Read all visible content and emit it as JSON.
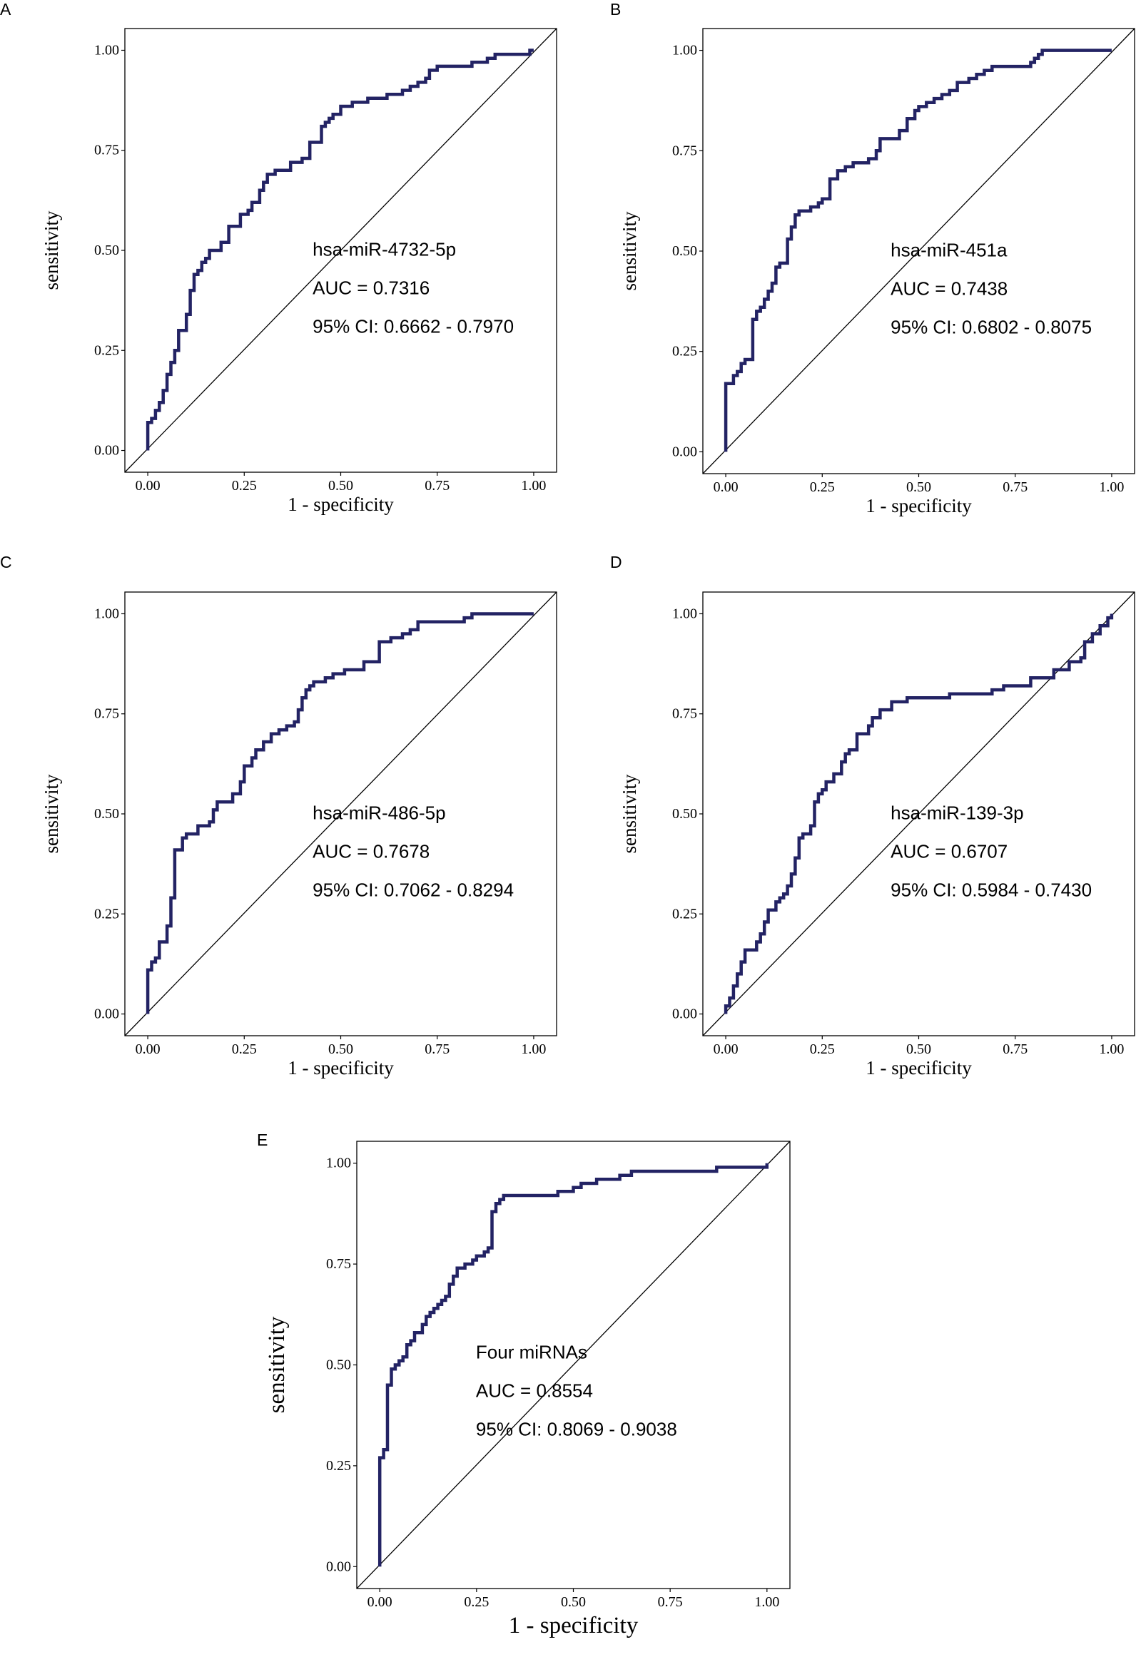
{
  "figure": {
    "colors": {
      "roc_line": "#232364",
      "diagonal": "#000000",
      "frame": "#000000",
      "background": "#ffffff"
    }
  },
  "chart_data": [
    {
      "id": "A",
      "panel_label": "A",
      "type": "line",
      "title": "",
      "xlabel": "1 - specificity",
      "ylabel": "sensitivity",
      "xlim": [
        0,
        1
      ],
      "ylim": [
        0,
        1
      ],
      "xticks": [
        "0.00",
        "0.25",
        "0.50",
        "0.75",
        "1.00"
      ],
      "yticks": [
        "0.00",
        "0.25",
        "0.50",
        "0.75",
        "1.00"
      ],
      "annotation": {
        "name": "hsa-miR-4732-5p",
        "auc": "AUC = 0.7316",
        "ci": "95% CI: 0.6662 - 0.7970"
      },
      "series": [
        {
          "name": "ROC",
          "x": [
            0.0,
            0.0,
            0.01,
            0.02,
            0.03,
            0.04,
            0.05,
            0.06,
            0.07,
            0.08,
            0.09,
            0.1,
            0.11,
            0.12,
            0.13,
            0.14,
            0.15,
            0.16,
            0.17,
            0.19,
            0.21,
            0.22,
            0.24,
            0.26,
            0.27,
            0.29,
            0.3,
            0.31,
            0.33,
            0.35,
            0.37,
            0.4,
            0.42,
            0.45,
            0.46,
            0.47,
            0.48,
            0.5,
            0.53,
            0.57,
            0.59,
            0.62,
            0.66,
            0.68,
            0.7,
            0.72,
            0.73,
            0.75,
            0.77,
            0.8,
            0.84,
            0.87,
            0.88,
            0.9,
            0.94,
            0.98,
            0.99,
            1.0
          ],
          "y": [
            0.0,
            0.07,
            0.08,
            0.1,
            0.12,
            0.15,
            0.19,
            0.22,
            0.25,
            0.3,
            0.3,
            0.34,
            0.4,
            0.44,
            0.45,
            0.47,
            0.48,
            0.5,
            0.5,
            0.52,
            0.56,
            0.56,
            0.59,
            0.6,
            0.62,
            0.65,
            0.67,
            0.69,
            0.7,
            0.7,
            0.72,
            0.73,
            0.77,
            0.81,
            0.82,
            0.83,
            0.84,
            0.86,
            0.87,
            0.88,
            0.88,
            0.89,
            0.9,
            0.91,
            0.92,
            0.93,
            0.95,
            0.96,
            0.96,
            0.96,
            0.97,
            0.97,
            0.98,
            0.99,
            0.99,
            0.99,
            1.0,
            1.0
          ]
        }
      ]
    },
    {
      "id": "B",
      "panel_label": "B",
      "type": "line",
      "title": "",
      "xlabel": "1 - specificity",
      "ylabel": "sensitivity",
      "xlim": [
        0,
        1
      ],
      "ylim": [
        0,
        1
      ],
      "xticks": [
        "0.00",
        "0.25",
        "0.50",
        "0.75",
        "1.00"
      ],
      "yticks": [
        "0.00",
        "0.25",
        "0.50",
        "0.75",
        "1.00"
      ],
      "annotation": {
        "name": "hsa-miR-451a",
        "auc": "AUC = 0.7438",
        "ci": "95% CI: 0.6802 - 0.8075"
      },
      "series": [
        {
          "name": "ROC",
          "x": [
            0.0,
            0.0,
            0.02,
            0.03,
            0.04,
            0.05,
            0.07,
            0.07,
            0.08,
            0.09,
            0.1,
            0.11,
            0.12,
            0.13,
            0.14,
            0.15,
            0.16,
            0.17,
            0.18,
            0.19,
            0.2,
            0.22,
            0.24,
            0.25,
            0.26,
            0.27,
            0.29,
            0.31,
            0.33,
            0.35,
            0.37,
            0.39,
            0.4,
            0.43,
            0.45,
            0.47,
            0.49,
            0.5,
            0.52,
            0.54,
            0.56,
            0.58,
            0.6,
            0.63,
            0.65,
            0.66,
            0.67,
            0.69,
            0.72,
            0.76,
            0.79,
            0.8,
            0.81,
            0.82,
            0.84,
            0.88,
            0.9,
            0.93,
            0.97,
            1.0
          ],
          "y": [
            0.0,
            0.17,
            0.19,
            0.2,
            0.22,
            0.23,
            0.29,
            0.33,
            0.35,
            0.36,
            0.38,
            0.4,
            0.42,
            0.46,
            0.47,
            0.47,
            0.53,
            0.56,
            0.59,
            0.6,
            0.6,
            0.61,
            0.62,
            0.63,
            0.63,
            0.68,
            0.7,
            0.71,
            0.72,
            0.72,
            0.73,
            0.75,
            0.78,
            0.78,
            0.8,
            0.83,
            0.85,
            0.86,
            0.87,
            0.88,
            0.89,
            0.9,
            0.92,
            0.93,
            0.94,
            0.94,
            0.95,
            0.96,
            0.96,
            0.96,
            0.97,
            0.98,
            0.99,
            1.0,
            1.0,
            1.0,
            1.0,
            1.0,
            1.0,
            1.0
          ]
        }
      ]
    },
    {
      "id": "C",
      "panel_label": "C",
      "type": "line",
      "title": "",
      "xlabel": "1 - specificity",
      "ylabel": "sensitivity",
      "xlim": [
        0,
        1
      ],
      "ylim": [
        0,
        1
      ],
      "xticks": [
        "0.00",
        "0.25",
        "0.50",
        "0.75",
        "1.00"
      ],
      "yticks": [
        "0.00",
        "0.25",
        "0.50",
        "0.75",
        "1.00"
      ],
      "annotation": {
        "name": "hsa-miR-486-5p",
        "auc": "AUC = 0.7678",
        "ci": "95% CI: 0.7062 - 0.8294"
      },
      "series": [
        {
          "name": "ROC",
          "x": [
            0.0,
            0.0,
            0.01,
            0.02,
            0.03,
            0.04,
            0.05,
            0.06,
            0.06,
            0.07,
            0.08,
            0.09,
            0.1,
            0.11,
            0.13,
            0.14,
            0.16,
            0.17,
            0.18,
            0.2,
            0.22,
            0.24,
            0.25,
            0.27,
            0.28,
            0.3,
            0.32,
            0.34,
            0.36,
            0.38,
            0.39,
            0.4,
            0.41,
            0.42,
            0.43,
            0.44,
            0.46,
            0.48,
            0.51,
            0.54,
            0.56,
            0.58,
            0.6,
            0.61,
            0.63,
            0.66,
            0.68,
            0.7,
            0.71,
            0.73,
            0.78,
            0.82,
            0.84,
            0.87,
            0.9,
            0.95,
            1.0
          ],
          "y": [
            0.0,
            0.11,
            0.13,
            0.14,
            0.18,
            0.18,
            0.22,
            0.23,
            0.29,
            0.41,
            0.41,
            0.44,
            0.45,
            0.45,
            0.47,
            0.47,
            0.48,
            0.51,
            0.53,
            0.53,
            0.55,
            0.58,
            0.62,
            0.64,
            0.66,
            0.68,
            0.7,
            0.71,
            0.72,
            0.73,
            0.76,
            0.79,
            0.81,
            0.82,
            0.83,
            0.83,
            0.84,
            0.85,
            0.86,
            0.86,
            0.88,
            0.88,
            0.93,
            0.93,
            0.94,
            0.95,
            0.96,
            0.98,
            0.98,
            0.98,
            0.98,
            0.99,
            1.0,
            1.0,
            1.0,
            1.0,
            1.0
          ]
        }
      ]
    },
    {
      "id": "D",
      "panel_label": "D",
      "type": "line",
      "title": "",
      "xlabel": "1 - specificity",
      "ylabel": "sensitivity",
      "xlim": [
        0,
        1
      ],
      "ylim": [
        0,
        1
      ],
      "xticks": [
        "0.00",
        "0.25",
        "0.50",
        "0.75",
        "1.00"
      ],
      "yticks": [
        "0.00",
        "0.25",
        "0.50",
        "0.75",
        "1.00"
      ],
      "annotation": {
        "name": "hsa-miR-139-3p",
        "auc": "AUC = 0.6707",
        "ci": "95% CI: 0.5984 - 0.7430"
      },
      "series": [
        {
          "name": "ROC",
          "x": [
            0.0,
            0.0,
            0.01,
            0.02,
            0.03,
            0.04,
            0.05,
            0.07,
            0.08,
            0.09,
            0.1,
            0.11,
            0.13,
            0.14,
            0.15,
            0.16,
            0.17,
            0.18,
            0.19,
            0.2,
            0.22,
            0.23,
            0.24,
            0.25,
            0.26,
            0.28,
            0.3,
            0.31,
            0.32,
            0.34,
            0.36,
            0.37,
            0.38,
            0.4,
            0.43,
            0.47,
            0.52,
            0.58,
            0.64,
            0.69,
            0.72,
            0.75,
            0.79,
            0.85,
            0.89,
            0.91,
            0.92,
            0.93,
            0.95,
            0.97,
            0.99,
            1.0
          ],
          "y": [
            0.0,
            0.02,
            0.04,
            0.07,
            0.1,
            0.13,
            0.16,
            0.16,
            0.18,
            0.2,
            0.23,
            0.26,
            0.28,
            0.29,
            0.3,
            0.32,
            0.35,
            0.39,
            0.44,
            0.45,
            0.47,
            0.53,
            0.55,
            0.56,
            0.58,
            0.6,
            0.63,
            0.65,
            0.66,
            0.7,
            0.7,
            0.72,
            0.74,
            0.76,
            0.78,
            0.79,
            0.79,
            0.8,
            0.8,
            0.81,
            0.82,
            0.82,
            0.84,
            0.86,
            0.88,
            0.88,
            0.89,
            0.93,
            0.95,
            0.97,
            0.99,
            1.0
          ]
        }
      ]
    },
    {
      "id": "E",
      "panel_label": "E",
      "type": "line",
      "title": "",
      "xlabel": "1 - specificity",
      "ylabel": "sensitivity",
      "xlim": [
        0,
        1
      ],
      "ylim": [
        0,
        1
      ],
      "xticks": [
        "0.00",
        "0.25",
        "0.50",
        "0.75",
        "1.00"
      ],
      "yticks": [
        "0.00",
        "0.25",
        "0.50",
        "0.75",
        "1.00"
      ],
      "annotation": {
        "name": "Four miRNAs",
        "auc": "AUC = 0.8554",
        "ci": "95% CI: 0.8069 - 0.9038"
      },
      "series": [
        {
          "name": "ROC",
          "x": [
            0.0,
            0.0,
            0.01,
            0.02,
            0.02,
            0.03,
            0.04,
            0.05,
            0.06,
            0.07,
            0.08,
            0.09,
            0.1,
            0.11,
            0.12,
            0.13,
            0.14,
            0.15,
            0.16,
            0.17,
            0.18,
            0.19,
            0.2,
            0.21,
            0.22,
            0.23,
            0.24,
            0.25,
            0.27,
            0.28,
            0.29,
            0.3,
            0.3,
            0.31,
            0.32,
            0.34,
            0.38,
            0.42,
            0.46,
            0.5,
            0.52,
            0.56,
            0.58,
            0.62,
            0.65,
            0.7,
            0.75,
            0.8,
            0.87,
            0.95,
            1.0
          ],
          "y": [
            0.0,
            0.27,
            0.29,
            0.31,
            0.45,
            0.49,
            0.5,
            0.51,
            0.52,
            0.55,
            0.56,
            0.58,
            0.58,
            0.6,
            0.62,
            0.63,
            0.64,
            0.65,
            0.66,
            0.67,
            0.7,
            0.72,
            0.74,
            0.74,
            0.75,
            0.75,
            0.76,
            0.77,
            0.78,
            0.79,
            0.88,
            0.89,
            0.9,
            0.91,
            0.92,
            0.92,
            0.92,
            0.92,
            0.93,
            0.94,
            0.95,
            0.96,
            0.96,
            0.97,
            0.98,
            0.98,
            0.98,
            0.98,
            0.99,
            0.99,
            1.0
          ]
        }
      ]
    }
  ]
}
